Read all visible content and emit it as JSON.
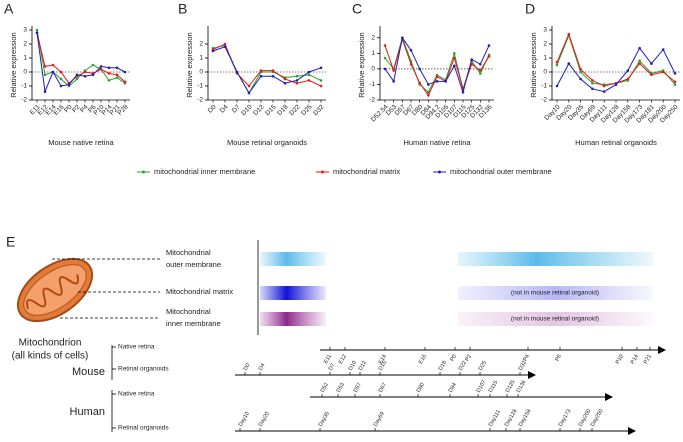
{
  "chart_data": [
    {
      "type": "line",
      "panel_label": "A",
      "xlabel": "Mouse native retina",
      "ylabel": "Relative expression",
      "categories": [
        "E11",
        "E12",
        "E14",
        "E16",
        "P0",
        "P2",
        "P4",
        "P6",
        "P10",
        "P14",
        "P21",
        "P28"
      ],
      "ylim": [
        -2,
        3
      ],
      "yticks": [
        -2,
        -1,
        0,
        1,
        2,
        3
      ],
      "series": [
        {
          "name": "mitochondrial inner membrane",
          "color": "#2ca02c",
          "values": [
            3.0,
            -0.2,
            0,
            -0.5,
            -1.0,
            -0.5,
            0.1,
            0.5,
            0.2,
            -0.6,
            -0.4,
            -0.8
          ]
        },
        {
          "name": "mitochondrial matrix",
          "color": "#e31a1c",
          "values": [
            2.8,
            0.4,
            0.5,
            0,
            -0.8,
            -0.3,
            0,
            -0.1,
            0.2,
            -0.1,
            -0.2,
            -0.7
          ]
        },
        {
          "name": "mitochondrial outer membrane",
          "color": "#1f1fb4",
          "values": [
            2.8,
            -1.4,
            0,
            -1.0,
            -0.9,
            -0.2,
            -0.3,
            -0.2,
            0.4,
            0.3,
            0.3,
            0
          ]
        }
      ]
    },
    {
      "type": "line",
      "panel_label": "B",
      "xlabel": "Mouse retinal organoids",
      "ylabel": "Relative expression",
      "categories": [
        "D0",
        "D4",
        "D7",
        "D10",
        "D12",
        "D15",
        "D18",
        "D22",
        "D25",
        "D32"
      ],
      "ylim": [
        -2,
        3
      ],
      "yticks": [
        -2,
        -1,
        0,
        1,
        2
      ],
      "series": [
        {
          "color": "#2ca02c",
          "values": [
            1.7,
            1.9,
            0,
            -1.5,
            0,
            0,
            -0.4,
            -0.3,
            -0.2,
            -0.6
          ]
        },
        {
          "color": "#e31a1c",
          "values": [
            1.6,
            2.0,
            -0.1,
            -1.0,
            0.1,
            0.1,
            -0.5,
            -0.8,
            -0.6,
            -1.0
          ]
        },
        {
          "color": "#1f1fb4",
          "values": [
            1.5,
            1.8,
            0,
            -1.5,
            -0.3,
            -0.3,
            -0.8,
            -0.6,
            0,
            0.3
          ]
        }
      ]
    },
    {
      "type": "line",
      "panel_label": "C",
      "xlabel": "Human native retina",
      "ylabel": "Relative expression",
      "categories": [
        "D52.54",
        "D53",
        "D57",
        "D67",
        "D80",
        "D84",
        "D94.2",
        "D105",
        "D107",
        "D115",
        "D125",
        "D132",
        "D136"
      ],
      "ylim": [
        -2,
        2.5
      ],
      "yticks": [
        -2,
        -1,
        0,
        1,
        2
      ],
      "series": [
        {
          "color": "#2ca02c",
          "values": [
            0.7,
            0,
            2.0,
            0.5,
            -1.0,
            -1.5,
            -0.4,
            -0.7,
            1.0,
            -1.3,
            0.5,
            -0.3,
            0.9
          ]
        },
        {
          "color": "#e31a1c",
          "values": [
            1.5,
            -0.1,
            1.9,
            0.3,
            -0.9,
            -1.7,
            -0.5,
            -0.8,
            0.7,
            -1.3,
            0.3,
            -0.1,
            0.8
          ]
        },
        {
          "color": "#1f1fb4",
          "values": [
            0,
            -0.8,
            2.0,
            1.2,
            0,
            -1.0,
            -0.8,
            -0.8,
            0.2,
            -1.5,
            0.6,
            0.3,
            1.5
          ]
        }
      ]
    },
    {
      "type": "line",
      "panel_label": "D",
      "xlabel": "Human retinal organoids",
      "ylabel": "Relative expression",
      "categories": [
        "Day10",
        "Day20",
        "Day35",
        "Day69",
        "Day111",
        "Day128",
        "Day158",
        "Day173",
        "Day181",
        "Day200",
        "Day250"
      ],
      "ylim": [
        -2,
        3
      ],
      "yticks": [
        -2,
        -1,
        0,
        1,
        2,
        3
      ],
      "series": [
        {
          "color": "#2ca02c",
          "values": [
            0.5,
            2.6,
            0,
            -0.8,
            -0.9,
            -0.8,
            -0.6,
            0.8,
            -0.1,
            0.1,
            -0.9
          ]
        },
        {
          "color": "#e31a1c",
          "values": [
            0.7,
            2.7,
            0.2,
            -0.6,
            -1.0,
            -0.8,
            -0.5,
            0.6,
            -0.2,
            0,
            -0.7
          ]
        },
        {
          "color": "#1f1fb4",
          "values": [
            -1.0,
            0.6,
            -0.5,
            -1.2,
            -1.4,
            -0.9,
            0.1,
            1.7,
            0.6,
            1.6,
            -0.1
          ]
        }
      ]
    }
  ],
  "diagram": {
    "panel_label": "E",
    "organelle": {
      "name": "Mitochondrion",
      "subtitle": "(all kinds of cells)"
    },
    "compartments": [
      {
        "label_lines": [
          "Mitochondrial",
          "outer membrane"
        ]
      },
      {
        "label_lines": [
          "Mitochondrial matrix"
        ]
      },
      {
        "label_lines": [
          "Mitochondrial",
          "inner membrane"
        ]
      }
    ],
    "notes": [
      "(not in mouse retinal organoid)",
      "(not in mouse retinal organoid)"
    ],
    "timelines": [
      {
        "species": "Mouse",
        "tracks": [
          {
            "name": "Native retina",
            "ticks": [
              "E11",
              "E12",
              "E14",
              "E16",
              "P0",
              "P2",
              "P4",
              "P6",
              "P10",
              "P14",
              "P21"
            ]
          },
          {
            "name": "Retinal organoids",
            "ticks": [
              "D0",
              "D4",
              "D7",
              "D10",
              "D12",
              "D15",
              "D18",
              "D22",
              "D25",
              "D32"
            ]
          }
        ]
      },
      {
        "species": "Human",
        "tracks": [
          {
            "name": "Native retina",
            "ticks": [
              "D52",
              "D53",
              "D57",
              "D67",
              "D80",
              "D84",
              "D107",
              "D115",
              "D125",
              "D136"
            ]
          },
          {
            "name": "Retinal organoids",
            "ticks": [
              "Day10",
              "Day20",
              "Day35",
              "Day69",
              "Day111",
              "Day128",
              "Day158",
              "Day173",
              "Day200",
              "Day250"
            ]
          }
        ]
      }
    ]
  }
}
